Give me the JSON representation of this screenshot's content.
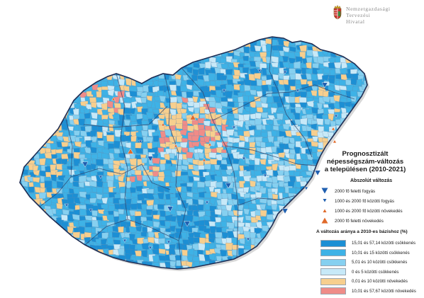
{
  "logo": {
    "lines": [
      "Nemzetgazdasági",
      "Tervezési",
      "Hivatal"
    ],
    "crest_icon": "hungarian-coat-of-arms-icon"
  },
  "legend": {
    "title_lines": [
      "Prognosztizált",
      "népességszám-változás",
      "a településen (2010-2021)"
    ],
    "absolute_title": "Abszolút változás",
    "absolute_items": [
      {
        "label": "2000 fő feletti fogyás",
        "symbol": "triangle-down",
        "size": "large",
        "color": "#1f5fb0"
      },
      {
        "label": "1000 és 2000 fő közötti fogyás",
        "symbol": "triangle-down",
        "size": "small",
        "color": "#1f5fb0"
      },
      {
        "label": "1000 és 2000 fő közötti növekedés",
        "symbol": "triangle-up",
        "size": "small",
        "color": "#e06a2a"
      },
      {
        "label": "2000 fő feletti növekedés",
        "symbol": "triangle-up",
        "size": "large",
        "color": "#e06a2a"
      }
    ],
    "rate_title": "A változás aránya a 2010-es bázishoz (%)",
    "rate_items": [
      {
        "label": "15,01 és 57,14 közötti csökkenés",
        "color": "#1c8fd4"
      },
      {
        "label": "10,01 és 15 közötti csökkenés",
        "color": "#3eb2e6"
      },
      {
        "label": "5,01 és 10 közötti csökkenés",
        "color": "#86d0f0"
      },
      {
        "label": "0 és 5 közötti csökkenés",
        "color": "#c7e9f8"
      },
      {
        "label": "0,01 és 10 közötti növekedés",
        "color": "#f7cf8e"
      },
      {
        "label": "10,01 és 57,67 közötti növekedés",
        "color": "#ef8c88"
      }
    ]
  }
}
